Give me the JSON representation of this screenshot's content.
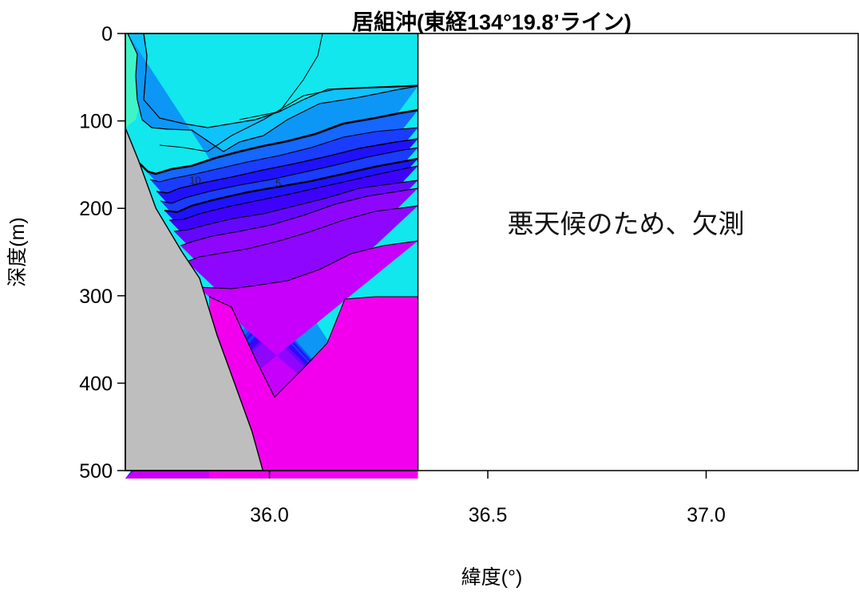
{
  "chart_data": {
    "type": "heatmap",
    "title": "居組沖(東経134°19.8’ライン)",
    "xlabel": "緯度(°)",
    "ylabel": "深度(m)",
    "xlim": [
      35.67,
      37.35
    ],
    "ylim": [
      500,
      0
    ],
    "x_ticks": [
      {
        "value": 36.0,
        "label": "36.0"
      },
      {
        "value": 36.5,
        "label": "36.5"
      },
      {
        "value": 37.0,
        "label": "37.0"
      }
    ],
    "y_ticks": [
      {
        "value": 0,
        "label": "0"
      },
      {
        "value": 100,
        "label": "100"
      },
      {
        "value": 200,
        "label": "200"
      },
      {
        "value": 300,
        "label": "300"
      },
      {
        "value": 400,
        "label": "400"
      },
      {
        "value": 500,
        "label": "500"
      }
    ],
    "data_extent": {
      "lat_min": 35.67,
      "lat_max": 36.34,
      "depth_min": 0,
      "depth_max": 500
    },
    "seabed": [
      [
        35.67,
        108
      ],
      [
        35.7,
        145
      ],
      [
        35.74,
        200
      ],
      [
        35.8,
        250
      ],
      [
        35.84,
        280
      ],
      [
        35.88,
        345
      ],
      [
        35.92,
        400
      ],
      [
        35.96,
        455
      ],
      [
        35.985,
        500
      ]
    ],
    "colors": {
      "surface_warm": "#3ff5c7",
      "surface": "#11e7ec",
      "upper": "#0ec2fb",
      "mid1": "#0c97f7",
      "mid2": "#1467ff",
      "mid3": "#1a3cff",
      "mid4": "#1f12fb",
      "deep1": "#3e02fb",
      "deep2": "#6408fd",
      "deep3": "#8f06ff",
      "deep4": "#c600fb",
      "bottom": "#f200ee",
      "seabed": "#bebebe"
    },
    "contour_labels": [
      {
        "text": "10",
        "lat": 35.83,
        "depth": 172
      },
      {
        "text": "5",
        "lat": 36.02,
        "depth": 175
      }
    ],
    "note": "悪天候のため、欠測"
  }
}
